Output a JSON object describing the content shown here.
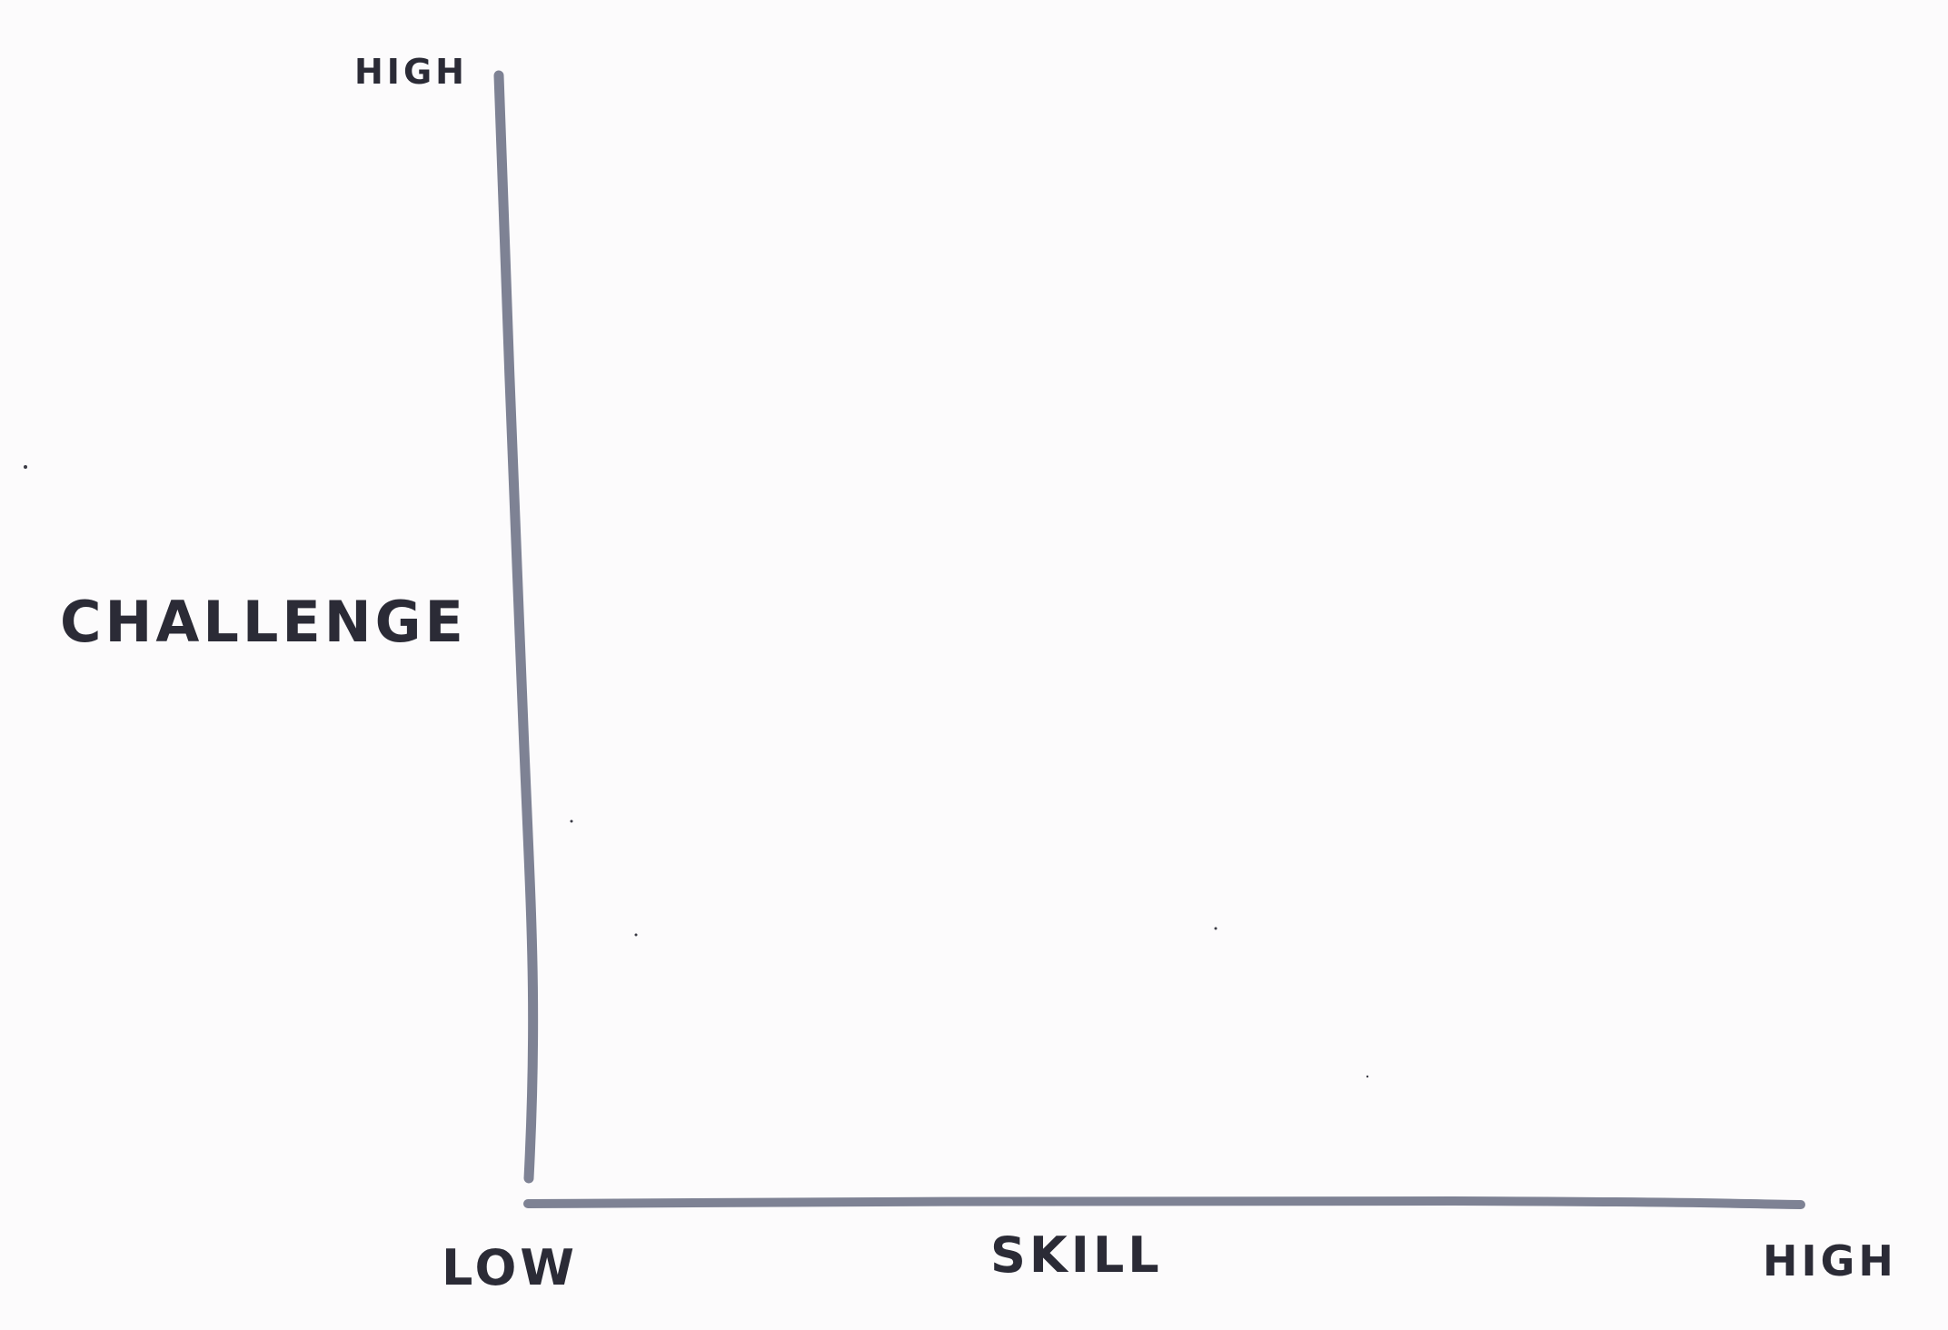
{
  "diagram": {
    "y_axis": {
      "label": "CHALLENGE",
      "high_label": "HIGH"
    },
    "x_axis": {
      "label": "SKILL",
      "low_label": "LOW",
      "high_label": "HIGH"
    },
    "colors": {
      "background": "#fcfbfc",
      "axis_stroke": "#7e8294",
      "ink": "#2b2b36"
    }
  }
}
